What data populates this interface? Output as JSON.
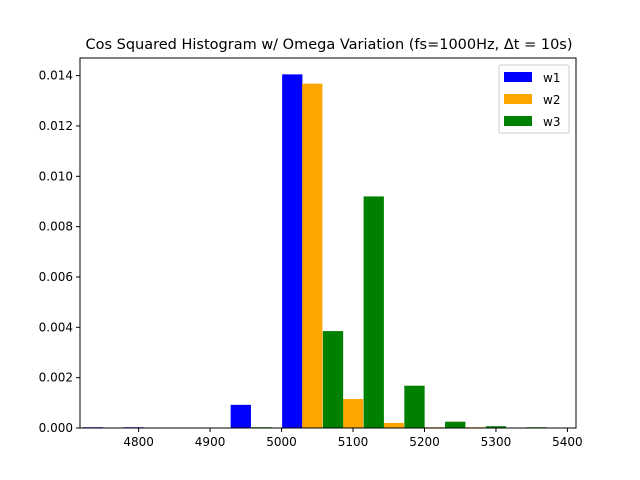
{
  "chart_data": {
    "type": "bar",
    "title": "Cos Squared Histogram w/ Omega Variation (fs=1000Hz, Δt = 10s)",
    "xlabel": "",
    "ylabel": "",
    "xlim": [
      4718,
      5412
    ],
    "ylim": [
      0,
      0.0147
    ],
    "xticks": [
      4800,
      4900,
      5000,
      5100,
      5200,
      5300,
      5400
    ],
    "xtick_labels": [
      "4800",
      "4900",
      "5000",
      "5100",
      "5200",
      "5300",
      "5400"
    ],
    "yticks": [
      0,
      0.002,
      0.004,
      0.006,
      0.008,
      0.01,
      0.012,
      0.014
    ],
    "ytick_labels": [
      "0.000",
      "0.002",
      "0.004",
      "0.006",
      "0.008",
      "0.010",
      "0.012",
      "0.014"
    ],
    "grid": false,
    "legend_position": "top-right",
    "bar_width": 28.4,
    "series": [
      {
        "name": "w1",
        "color": "#0000ff",
        "x": [
          4736,
          4793,
          4850,
          4908,
          4943,
          5015,
          5072,
          5129,
          5186,
          5243,
          5300,
          5357
        ],
        "values": [
          3e-05,
          3e-05,
          0.0,
          0.0,
          0.00092,
          0.01405,
          3e-05,
          0.0,
          3e-05,
          0.0,
          0.0,
          0.0
        ]
      },
      {
        "name": "w2",
        "color": "#ffa500",
        "x": [
          4765,
          4822,
          4879,
          4936,
          4993,
          5043,
          5100,
          5157,
          5214,
          5271,
          5328,
          5385
        ],
        "values": [
          0.0,
          0.0,
          0.0,
          0.0,
          0.0,
          0.01368,
          0.00115,
          0.0002,
          3e-05,
          3e-05,
          0.0,
          0.0
        ]
      },
      {
        "name": "w3",
        "color": "#008000",
        "x": [
          4793,
          4850,
          4908,
          4965,
          4972,
          5072,
          5129,
          5186,
          5243,
          5300,
          5357,
          5385
        ],
        "values": [
          0.0,
          0.0,
          0.0,
          0.0,
          3e-05,
          0.00385,
          0.0092,
          0.00168,
          0.00025,
          7e-05,
          3e-05,
          0.0
        ]
      }
    ]
  }
}
